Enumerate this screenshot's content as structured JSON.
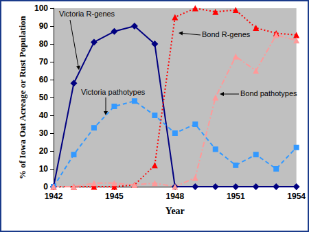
{
  "chart_data": {
    "type": "line",
    "xlabel": "Year",
    "ylabel": "% of Iowa Oat Acreage or Rust Population",
    "x": [
      1942,
      1943,
      1944,
      1945,
      1946,
      1947,
      1948,
      1949,
      1950,
      1951,
      1952,
      1953,
      1954
    ],
    "xlim": [
      1942,
      1954
    ],
    "xticks": [
      1942,
      1945,
      1948,
      1951,
      1954
    ],
    "ylim": [
      0,
      100
    ],
    "yticks": [
      0,
      10,
      20,
      30,
      40,
      50,
      60,
      70,
      80,
      90,
      100
    ],
    "grid": false,
    "series": [
      {
        "name": "Victoria R-genes",
        "color": "#000080",
        "marker": "diamond",
        "line_style": "solid",
        "values": [
          0,
          58,
          81,
          87,
          90,
          80,
          0,
          0,
          0,
          0,
          0,
          0,
          0
        ]
      },
      {
        "name": "Victoria pathotypes",
        "color": "#3399ff",
        "marker": "square",
        "line_style": "dashed",
        "values": [
          0,
          18,
          33,
          45,
          48,
          40,
          30,
          35,
          21,
          12,
          18,
          10,
          22
        ]
      },
      {
        "name": "Bond R-genes",
        "color": "#ff0000",
        "marker": "triangle",
        "line_style": "dotted",
        "values": [
          0,
          0,
          0,
          0,
          1,
          12,
          95,
          100,
          98,
          99,
          89,
          86,
          85
        ]
      },
      {
        "name": "Bond pathotypes",
        "color": "#ff9999",
        "marker": "triangle",
        "line_style": "dashdot",
        "values": [
          0,
          0,
          2,
          2,
          1,
          2,
          0,
          5,
          50,
          73,
          65,
          85,
          82
        ]
      }
    ]
  }
}
